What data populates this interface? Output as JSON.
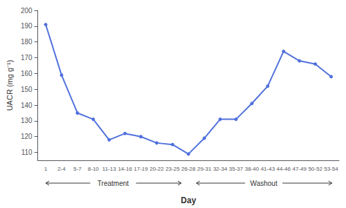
{
  "chart_data": {
    "type": "line",
    "categories": [
      "1",
      "2-4",
      "5-7",
      "8-10",
      "11-13",
      "14-16",
      "17-19",
      "20-22",
      "23-25",
      "26-28",
      "29-31",
      "32-34",
      "35-37",
      "38-40",
      "41-43",
      "44-46",
      "47-49",
      "50-52",
      "53-54"
    ],
    "values": [
      191,
      159,
      135,
      131,
      118,
      122,
      120,
      116,
      115,
      109,
      119,
      131,
      131,
      141,
      152,
      174,
      168,
      166,
      158
    ],
    "xlabel": "Day",
    "ylabel": "UACR (mg g⁻¹)",
    "ylim": [
      105,
      200
    ],
    "yticks": [
      110,
      120,
      130,
      140,
      150,
      160,
      170,
      180,
      190,
      200
    ],
    "annotations": [
      "Treatment",
      "Washout"
    ],
    "grid": false,
    "marker": "circle"
  }
}
